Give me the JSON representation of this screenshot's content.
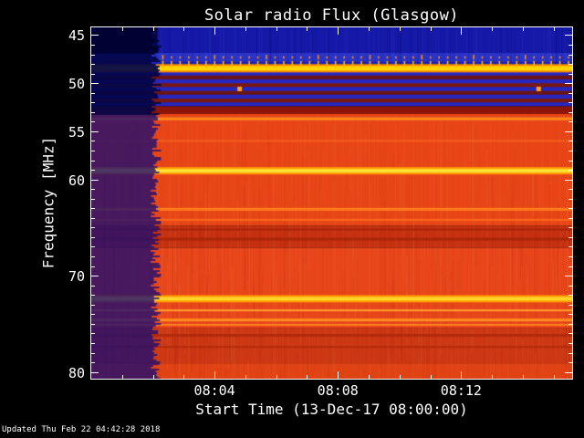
{
  "page": {
    "background": "#000000",
    "foreground": "#ffffff"
  },
  "footer": {
    "updated": "Updated Thu Feb 22 04:42:28 2018"
  },
  "chart_data": {
    "type": "heatmap",
    "title": "Solar radio Flux (Glasgow)",
    "xlabel": "Start Time (13-Dec-17 08:00:00)",
    "ylabel": "Frequency [MHz]",
    "x_unit": "minutes after 08:00:00",
    "x_range": [
      0,
      15.6
    ],
    "x_major_ticks": [
      {
        "t": 4,
        "label": "08:04"
      },
      {
        "t": 8,
        "label": "08:08"
      },
      {
        "t": 12,
        "label": "08:12"
      }
    ],
    "x_minor_step": 1,
    "y_unit": "MHz",
    "y_range_render": [
      44.2,
      80.7
    ],
    "y_major_ticks": [
      {
        "f": 45,
        "label": "45"
      },
      {
        "f": 50,
        "label": "50"
      },
      {
        "f": 55,
        "label": "55"
      },
      {
        "f": 60,
        "label": "60"
      },
      {
        "f": 70,
        "label": "70"
      },
      {
        "f": 80,
        "label": "80"
      }
    ],
    "y_minor_step": 1,
    "spectrogram": {
      "base_bands": [
        {
          "f0": 44.2,
          "f1": 46.85,
          "color": "#1519a8"
        },
        {
          "f0": 46.85,
          "f1": 47.8,
          "color": "#2a33c8"
        },
        {
          "f0": 47.8,
          "f1": 48.1,
          "color": "#1d23b6"
        },
        {
          "f0": 48.1,
          "f1": 48.8,
          "color": "#ff9400"
        },
        {
          "f0": 48.8,
          "f1": 52.4,
          "color": "#2427c2"
        },
        {
          "f0": 52.4,
          "f1": 53.2,
          "color": "#8c1408"
        },
        {
          "f0": 53.2,
          "f1": 64.8,
          "color": "#e84517"
        },
        {
          "f0": 64.8,
          "f1": 67.1,
          "color": "#c63011"
        },
        {
          "f0": 67.1,
          "f1": 75.4,
          "color": "#e8451a"
        },
        {
          "f0": 75.4,
          "f1": 79.1,
          "color": "#cd3713"
        },
        {
          "f0": 79.1,
          "f1": 80.7,
          "color": "#e04213"
        }
      ],
      "bright_lines": [
        {
          "f": 48.45,
          "w": 5,
          "color": "#ffd800",
          "glow": "#ff8c00"
        },
        {
          "f": 53.7,
          "w": 3,
          "color": "#ff8a1c"
        },
        {
          "f": 56.0,
          "w": 2,
          "color": "#f55d1e"
        },
        {
          "f": 59.1,
          "w": 4,
          "color": "#ffe133",
          "glow": "#ff9a00"
        },
        {
          "f": 63.1,
          "w": 3,
          "color": "#ff7d1a"
        },
        {
          "f": 64.2,
          "w": 2,
          "color": "#f8691a"
        },
        {
          "f": 72.4,
          "w": 4,
          "color": "#ffd628",
          "glow": "#ff9800"
        },
        {
          "f": 73.6,
          "w": 2,
          "color": "#ffa028"
        },
        {
          "f": 74.6,
          "w": 3,
          "color": "#ff8e20"
        },
        {
          "f": 75.1,
          "w": 2,
          "color": "#ff8120"
        }
      ],
      "dark_lines": [
        {
          "f": 49.4,
          "w": 4,
          "color": "#6e1410"
        },
        {
          "f": 50.2,
          "w": 4,
          "color": "#7c170e"
        },
        {
          "f": 51.0,
          "w": 4,
          "color": "#6e1410"
        },
        {
          "f": 51.8,
          "w": 4,
          "color": "#7c170e"
        },
        {
          "f": 65.2,
          "w": 2,
          "color": "#a82508"
        },
        {
          "f": 66.2,
          "w": 3,
          "color": "#a82508"
        },
        {
          "f": 76.2,
          "w": 3,
          "color": "#b12a0c"
        },
        {
          "f": 77.4,
          "w": 2,
          "color": "#b12a0c"
        }
      ],
      "periodic_marks": {
        "t_start": 2.3,
        "period_min": 0.28,
        "row_f": 47.3,
        "row_color": "#ff9200",
        "line_f": 48.45,
        "tick_color": "#ffb600",
        "column_color": "rgba(255,210,140,0.05)"
      },
      "dots": [
        {
          "t": 4.8,
          "f": 50.55,
          "color": "#ffa020"
        },
        {
          "t": 14.5,
          "f": 50.55,
          "color": "#ffa020"
        }
      ],
      "quiet_region": {
        "t0": 0,
        "t1": 2.1,
        "split_f": 53.2,
        "top_color": "rgba(3,5,72,0.93)",
        "bottom_color": "rgba(32,14,112,0.8)",
        "extra_dark_f1": 46.9,
        "extra_dark_color": "rgba(0,0,30,0.55)"
      },
      "noise": {
        "red_zone_f0": 53.2,
        "blue_zone_f1": 48.8
      }
    }
  }
}
